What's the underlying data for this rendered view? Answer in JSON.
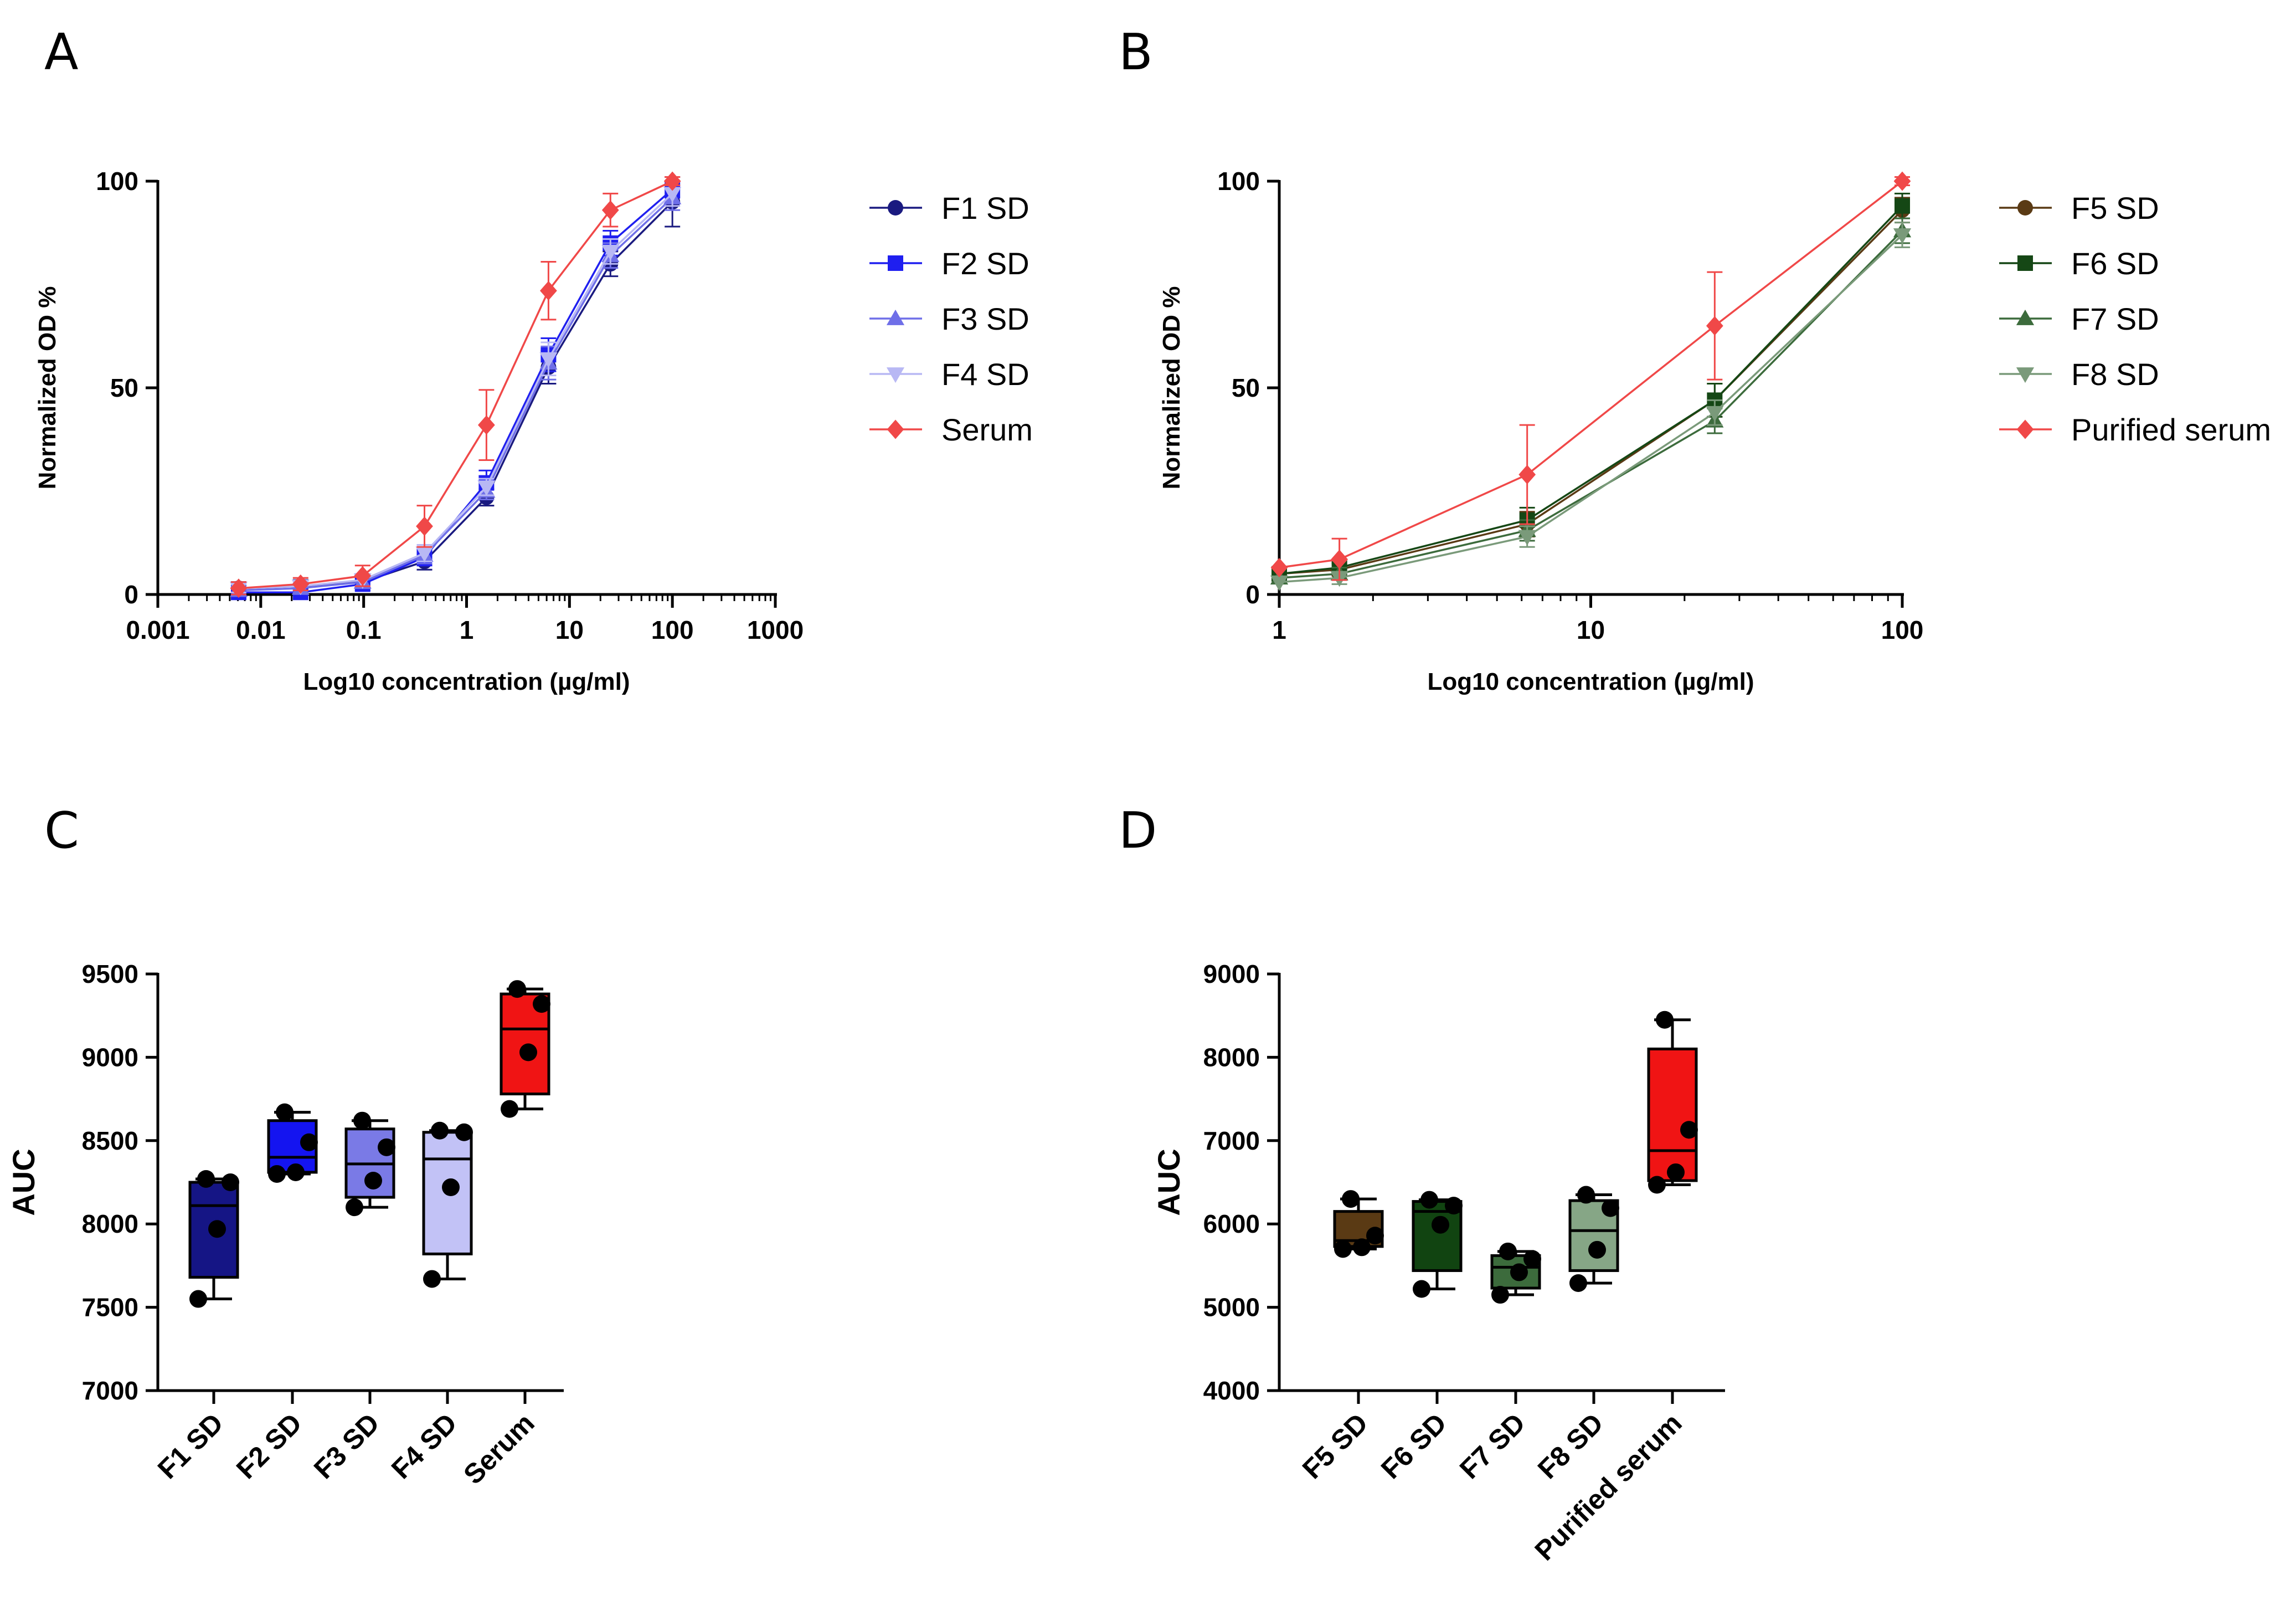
{
  "chart_data": [
    {
      "panel": "A",
      "type": "line",
      "xscale": "log",
      "xlabel": "Log10 concentration (µg/ml)",
      "ylabel": "Normalized OD %",
      "xlim": [
        0.001,
        1000
      ],
      "ylim": [
        0,
        100
      ],
      "xticks": [
        0.001,
        0.01,
        0.1,
        1,
        10,
        100,
        1000
      ],
      "xtick_labels": [
        "0.001",
        "0.01",
        "0.1",
        "1",
        "10",
        "100",
        "1000"
      ],
      "yticks": [
        0,
        50,
        100
      ],
      "ytick_labels": [
        "0",
        "50",
        "100"
      ],
      "x": [
        0.0061,
        0.0244,
        0.0977,
        0.39,
        1.56,
        6.25,
        25,
        100
      ],
      "legend_position": "right",
      "series": [
        {
          "name": "F1 SD",
          "color": "#1a1a80",
          "marker": "circle",
          "values": [
            1.5,
            2,
            3,
            8,
            23.5,
            55,
            80,
            95
          ],
          "err": [
            1.5,
            1.5,
            1.5,
            2,
            2,
            4,
            3,
            6
          ]
        },
        {
          "name": "F2 SD",
          "color": "#1f1ff0",
          "marker": "square",
          "values": [
            0.5,
            0.5,
            2.5,
            9,
            27,
            58,
            85,
            98
          ],
          "err": [
            1,
            1,
            1.5,
            2,
            3,
            4,
            3,
            2
          ]
        },
        {
          "name": "F3 SD",
          "color": "#6f6fe8",
          "marker": "triangle-up",
          "values": [
            1,
            1.5,
            3,
            9.5,
            25,
            56,
            82,
            96
          ],
          "err": [
            1,
            1,
            1.5,
            2,
            2,
            4,
            3,
            3
          ]
        },
        {
          "name": "F4 SD",
          "color": "#b8b8f4",
          "marker": "triangle-down",
          "values": [
            1.5,
            2,
            3.5,
            10,
            26,
            57,
            83,
            97
          ],
          "err": [
            1,
            1,
            1.5,
            2,
            2,
            4,
            3,
            3
          ]
        },
        {
          "name": "Serum",
          "color": "#f04848",
          "marker": "diamond",
          "values": [
            1.5,
            2.5,
            4.5,
            16.5,
            41,
            73.5,
            93,
            100
          ],
          "err": [
            1.5,
            1.5,
            2.5,
            5,
            8.5,
            7,
            4,
            1
          ]
        }
      ]
    },
    {
      "panel": "B",
      "type": "line",
      "xscale": "log",
      "xlabel": "Log10 concentration (µg/ml)",
      "ylabel": "Normalized OD %",
      "xlim": [
        1,
        100
      ],
      "ylim": [
        0,
        100
      ],
      "xticks": [
        1,
        10,
        100
      ],
      "xtick_labels": [
        "1",
        "10",
        "100"
      ],
      "yticks": [
        0,
        50,
        100
      ],
      "ytick_labels": [
        "0",
        "50",
        "100"
      ],
      "x": [
        1,
        1.56,
        6.25,
        25,
        100
      ],
      "legend_position": "right",
      "series": [
        {
          "name": "F5 SD",
          "color": "#5a3a14",
          "marker": "circle",
          "values": [
            5,
            6,
            17,
            47,
            93
          ],
          "err": [
            0,
            1.5,
            3,
            4,
            3
          ]
        },
        {
          "name": "F6 SD",
          "color": "#154715",
          "marker": "square",
          "values": [
            5,
            6.5,
            18,
            47,
            94
          ],
          "err": [
            0,
            1.5,
            3,
            4,
            3
          ]
        },
        {
          "name": "F7 SD",
          "color": "#3c6b3c",
          "marker": "triangle-up",
          "values": [
            4,
            5,
            15.5,
            42,
            88
          ],
          "err": [
            0,
            1.5,
            2.5,
            3,
            3
          ]
        },
        {
          "name": "F8 SD",
          "color": "#7a9a7a",
          "marker": "triangle-down",
          "values": [
            3,
            4,
            14,
            44,
            87
          ],
          "err": [
            0,
            1.5,
            2.5,
            3,
            3
          ]
        },
        {
          "name": "Purified serum",
          "color": "#f04848",
          "marker": "diamond",
          "values": [
            6.5,
            8.5,
            29,
            65,
            100
          ],
          "err": [
            0,
            5,
            12,
            13,
            1
          ]
        }
      ]
    },
    {
      "panel": "C",
      "type": "box",
      "ylabel": "AUC",
      "ylim": [
        7000,
        9500
      ],
      "yticks": [
        7000,
        7500,
        8000,
        8500,
        9000,
        9500
      ],
      "ytick_labels": [
        "7000",
        "7500",
        "8000",
        "8500",
        "9000",
        "9500"
      ],
      "categories": [
        "F1 SD",
        "F2 SD",
        "F3 SD",
        "F4 SD",
        "Serum"
      ],
      "colors": [
        "#151585",
        "#1414f0",
        "#7a7ae6",
        "#c2c2f6",
        "#f01414"
      ],
      "boxes": [
        {
          "min": 7550,
          "q1": 7680,
          "median": 8110,
          "q3": 8250,
          "max": 8270,
          "points": [
            7550,
            7970,
            8250,
            8270
          ]
        },
        {
          "min": 8300,
          "q1": 8310,
          "median": 8400,
          "q3": 8620,
          "max": 8670,
          "points": [
            8300,
            8310,
            8490,
            8670
          ]
        },
        {
          "min": 8100,
          "q1": 8160,
          "median": 8360,
          "q3": 8570,
          "max": 8620,
          "points": [
            8100,
            8260,
            8460,
            8620
          ]
        },
        {
          "min": 7670,
          "q1": 7820,
          "median": 8390,
          "q3": 8550,
          "max": 8560,
          "points": [
            7670,
            8220,
            8550,
            8560
          ]
        },
        {
          "min": 8690,
          "q1": 8780,
          "median": 9170,
          "q3": 9380,
          "max": 9410,
          "points": [
            8690,
            9030,
            9320,
            9410
          ]
        }
      ]
    },
    {
      "panel": "D",
      "type": "box",
      "ylabel": "AUC",
      "ylim": [
        4000,
        9000
      ],
      "yticks": [
        4000,
        5000,
        6000,
        7000,
        8000,
        9000
      ],
      "ytick_labels": [
        "4000",
        "5000",
        "6000",
        "7000",
        "8000",
        "9000"
      ],
      "categories": [
        "F5 SD",
        "F6 SD",
        "F7 SD",
        "F8 SD",
        "Purified serum"
      ],
      "colors": [
        "#5a3a14",
        "#114411",
        "#3c6b3c",
        "#86a686",
        "#f01414"
      ],
      "boxes": [
        {
          "min": 5700,
          "q1": 5730,
          "median": 5800,
          "q3": 6150,
          "max": 6300,
          "points": [
            5700,
            5720,
            5860,
            6300
          ]
        },
        {
          "min": 5220,
          "q1": 5440,
          "median": 6150,
          "q3": 6270,
          "max": 6290,
          "points": [
            5220,
            5990,
            6220,
            6290
          ]
        },
        {
          "min": 5150,
          "q1": 5230,
          "median": 5480,
          "q3": 5620,
          "max": 5670,
          "points": [
            5150,
            5420,
            5580,
            5670
          ]
        },
        {
          "min": 5290,
          "q1": 5440,
          "median": 5920,
          "q3": 6280,
          "max": 6350,
          "points": [
            5290,
            5690,
            6190,
            6350
          ]
        },
        {
          "min": 6470,
          "q1": 6520,
          "median": 6880,
          "q3": 8100,
          "max": 8450,
          "points": [
            6470,
            6620,
            7130,
            8450
          ]
        }
      ]
    }
  ]
}
